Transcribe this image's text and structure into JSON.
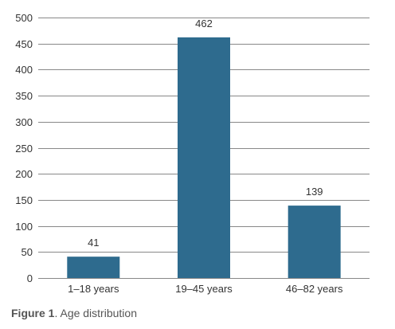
{
  "chart_data": {
    "type": "bar",
    "categories": [
      "1–18 years",
      "19–45 years",
      "46–82 years"
    ],
    "values": [
      41,
      462,
      139
    ],
    "data_labels": [
      "41",
      "462",
      "139"
    ],
    "title": "",
    "xlabel": "",
    "ylabel": "",
    "ylim": [
      0,
      500
    ],
    "y_ticks": [
      0,
      50,
      100,
      150,
      200,
      250,
      300,
      350,
      400,
      450,
      500
    ],
    "grid": true,
    "legend": "none",
    "bar_color": "#2e6b8e",
    "grid_color": "#888888"
  },
  "caption": {
    "label": "Figure 1",
    "text": ". Age distribution"
  }
}
